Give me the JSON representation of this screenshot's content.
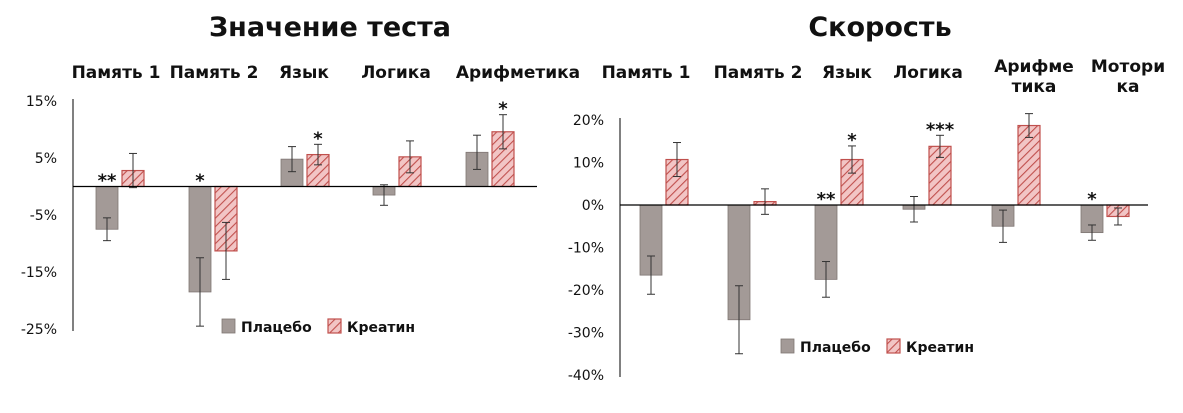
{
  "colors": {
    "placebo": "#a39a97",
    "creatine_stroke": "#c0504d",
    "creatine_fill": "#f2c5c5",
    "axis": "#000000",
    "text": "#111111"
  },
  "chart_data": [
    {
      "type": "bar",
      "title": "Значение теста",
      "xlabel": "",
      "ylabel": "",
      "categories": [
        "Память 1",
        "Память 2",
        "Язык",
        "Логика",
        "Арифметика"
      ],
      "series": [
        {
          "name": "Плацебо",
          "values": [
            -7.5,
            -18.5,
            4.8,
            -1.5,
            6.0
          ],
          "error": [
            2.0,
            6.0,
            2.2,
            1.8,
            3.0
          ]
        },
        {
          "name": "Креатин",
          "values": [
            2.8,
            -11.3,
            5.6,
            5.2,
            9.6
          ],
          "error": [
            3.0,
            5.0,
            1.8,
            2.8,
            3.0
          ]
        }
      ],
      "annotations": [
        {
          "category": "Память 1",
          "text": "**",
          "series": "Плацебо"
        },
        {
          "category": "Память 2",
          "text": "*",
          "series": "Плацебо"
        },
        {
          "category": "Язык",
          "text": "*",
          "series": "Креатин"
        },
        {
          "category": "Арифметика",
          "text": "*",
          "series": "Креатин"
        }
      ],
      "ylim": [
        -25,
        15
      ],
      "yticks": [
        15,
        5,
        -5,
        -15,
        -25
      ],
      "ytick_labels": [
        "15%",
        "5%",
        "-5%",
        "-15%",
        "-25%"
      ],
      "legend": [
        "Плацебо",
        "Креатин"
      ],
      "legend_position": "bottom-center",
      "grid": false
    },
    {
      "type": "bar",
      "title": "Скорость",
      "xlabel": "",
      "ylabel": "",
      "categories": [
        "Память 1",
        "Память 2",
        "Язык",
        "Логика",
        "Арифметика",
        "Моторика"
      ],
      "category_label_lines": [
        [
          "Память 1"
        ],
        [
          "Память 2"
        ],
        [
          "Язык"
        ],
        [
          "Логика"
        ],
        [
          "Арифме",
          "тика"
        ],
        [
          "Мотори",
          "ка"
        ]
      ],
      "series": [
        {
          "name": "Плацебо",
          "values": [
            -16.5,
            -27.0,
            -17.5,
            -1.0,
            -5.0,
            -6.5
          ],
          "error": [
            4.5,
            8.0,
            4.2,
            3.0,
            3.8,
            1.8
          ]
        },
        {
          "name": "Креатин",
          "values": [
            10.7,
            0.8,
            10.7,
            13.8,
            18.7,
            -2.7
          ],
          "error": [
            4.0,
            3.0,
            3.2,
            2.6,
            2.8,
            2.0
          ]
        }
      ],
      "annotations": [
        {
          "category": "Язык",
          "text": "**",
          "series": "Плацебо"
        },
        {
          "category": "Язык",
          "text": "*",
          "series": "Креатин"
        },
        {
          "category": "Логика",
          "text": "***",
          "series": "Креатин"
        },
        {
          "category": "Моторика",
          "text": "*",
          "series": "Плацебо"
        }
      ],
      "ylim": [
        -40,
        25
      ],
      "yticks": [
        20,
        10,
        0,
        -10,
        -20,
        -30,
        -40
      ],
      "ytick_labels": [
        "20%",
        "10%",
        "0%",
        "-10%",
        "-20%",
        "-30%",
        "-40%"
      ],
      "legend": [
        "Плацебо",
        "Креатин"
      ],
      "legend_position": "bottom-center",
      "grid": false
    }
  ]
}
